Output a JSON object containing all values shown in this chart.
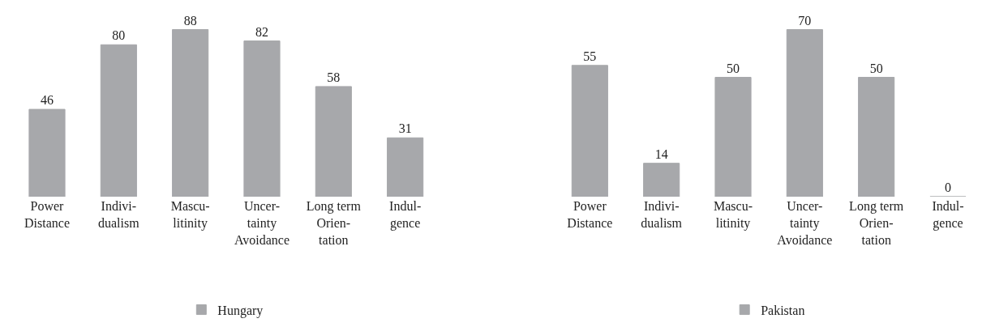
{
  "chart_data": [
    {
      "type": "bar",
      "categories": [
        "Power\nDistance",
        "Indivi-\ndualism",
        "Mascu-\nlitinity",
        "Uncer-\ntainty\nAvoidance",
        "Long term\nOrien-\ntation",
        "Indul-\ngence"
      ],
      "series": [
        {
          "name": "Hungary",
          "color": "#a7a8ab",
          "values": [
            46,
            80,
            88,
            82,
            58,
            31
          ]
        }
      ],
      "data_labels": true,
      "legend": "bottom"
    },
    {
      "type": "bar",
      "categories": [
        "Power\nDistance",
        "Indivi-\ndualism",
        "Mascu-\nlitinity",
        "Uncer-\ntainty\nAvoidance",
        "Long term\nOrien-\ntation",
        "Indul-\ngence"
      ],
      "series": [
        {
          "name": "Pakistan",
          "color": "#a7a8ab",
          "values": [
            55,
            14,
            50,
            70,
            50,
            0
          ]
        }
      ],
      "data_labels": true,
      "legend": "bottom"
    }
  ]
}
